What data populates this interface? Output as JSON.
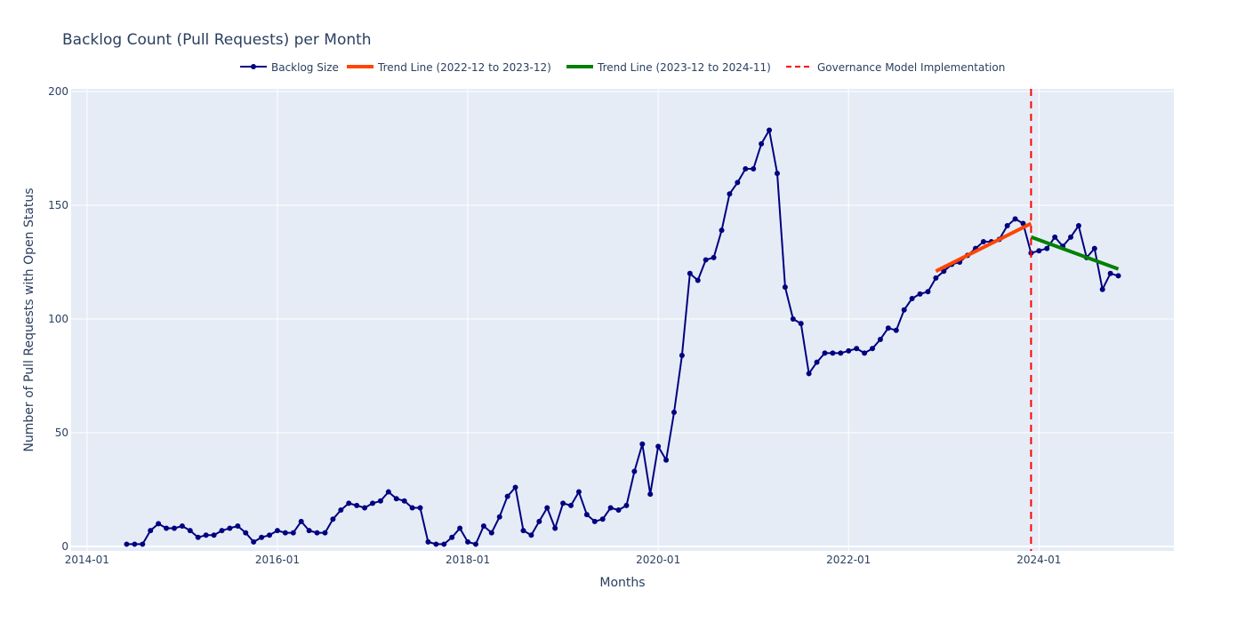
{
  "chart_data": {
    "type": "line",
    "title": "Backlog Count (Pull Requests) per Month",
    "xlabel": "Months",
    "ylabel": "Number of Pull Requests with Open Status",
    "ylim": [
      0,
      200
    ],
    "y_ticks": [
      0,
      50,
      100,
      150,
      200
    ],
    "x_ticks": [
      "2014-01",
      "2016-01",
      "2018-01",
      "2020-01",
      "2022-01",
      "2024-01"
    ],
    "grid": true,
    "legend_position": "top",
    "colors": {
      "backlog": "#000080",
      "trend1": "#ff4500",
      "trend2": "#008000",
      "governance": "#ff0000",
      "plot_bg": "#e5ecf6",
      "grid": "#ffffff"
    },
    "series": [
      {
        "name": "Backlog Size",
        "mode": "lines+markers",
        "x": [
          "2014-06",
          "2014-07",
          "2014-08",
          "2014-09",
          "2014-10",
          "2014-11",
          "2014-12",
          "2015-01",
          "2015-02",
          "2015-03",
          "2015-04",
          "2015-05",
          "2015-06",
          "2015-07",
          "2015-08",
          "2015-09",
          "2015-10",
          "2015-11",
          "2015-12",
          "2016-01",
          "2016-02",
          "2016-03",
          "2016-04",
          "2016-05",
          "2016-06",
          "2016-07",
          "2016-08",
          "2016-09",
          "2016-10",
          "2016-11",
          "2016-12",
          "2017-01",
          "2017-02",
          "2017-03",
          "2017-04",
          "2017-05",
          "2017-06",
          "2017-07",
          "2017-08",
          "2017-09",
          "2017-10",
          "2017-11",
          "2017-12",
          "2018-01",
          "2018-02",
          "2018-03",
          "2018-04",
          "2018-05",
          "2018-06",
          "2018-07",
          "2018-08",
          "2018-09",
          "2018-10",
          "2018-11",
          "2018-12",
          "2019-01",
          "2019-02",
          "2019-03",
          "2019-04",
          "2019-05",
          "2019-06",
          "2019-07",
          "2019-08",
          "2019-09",
          "2019-10",
          "2019-11",
          "2019-12",
          "2020-01",
          "2020-02",
          "2020-03",
          "2020-04",
          "2020-05",
          "2020-06",
          "2020-07",
          "2020-08",
          "2020-09",
          "2020-10",
          "2020-11",
          "2020-12",
          "2021-01",
          "2021-02",
          "2021-03",
          "2021-04",
          "2021-05",
          "2021-06",
          "2021-07",
          "2021-08",
          "2021-09",
          "2021-10",
          "2021-11",
          "2021-12",
          "2022-01",
          "2022-02",
          "2022-03",
          "2022-04",
          "2022-05",
          "2022-06",
          "2022-07",
          "2022-08",
          "2022-09",
          "2022-10",
          "2022-11",
          "2022-12",
          "2023-01",
          "2023-02",
          "2023-03",
          "2023-04",
          "2023-05",
          "2023-06",
          "2023-07",
          "2023-08",
          "2023-09",
          "2023-10",
          "2023-11",
          "2023-12",
          "2024-01",
          "2024-02",
          "2024-03",
          "2024-04",
          "2024-05",
          "2024-06",
          "2024-07",
          "2024-08",
          "2024-09",
          "2024-10",
          "2024-11"
        ],
        "y": [
          1,
          1,
          1,
          7,
          10,
          8,
          8,
          9,
          7,
          4,
          5,
          5,
          7,
          8,
          9,
          6,
          2,
          4,
          5,
          7,
          6,
          6,
          11,
          7,
          6,
          6,
          12,
          16,
          19,
          18,
          17,
          19,
          20,
          24,
          21,
          20,
          17,
          17,
          2,
          1,
          1,
          4,
          8,
          2,
          1,
          9,
          6,
          13,
          22,
          26,
          7,
          5,
          11,
          17,
          8,
          19,
          18,
          24,
          14,
          11,
          12,
          17,
          16,
          18,
          33,
          45,
          23,
          44,
          38,
          59,
          84,
          120,
          117,
          126,
          127,
          139,
          155,
          160,
          166,
          166,
          177,
          183,
          164,
          114,
          100,
          98,
          76,
          81,
          85,
          85,
          85,
          86,
          87,
          85,
          87,
          91,
          96,
          95,
          104,
          109,
          111,
          112,
          118,
          121,
          124,
          125,
          128,
          131,
          134,
          134,
          135,
          141,
          144,
          142,
          129,
          130,
          131,
          136,
          132,
          136,
          141,
          127,
          131,
          113,
          120,
          119
        ]
      },
      {
        "name": "Trend Line (2022-12 to 2023-12)",
        "mode": "lines",
        "x": [
          "2022-12",
          "2023-12"
        ],
        "y": [
          121,
          142
        ]
      },
      {
        "name": "Trend Line (2023-12 to 2024-11)",
        "mode": "lines",
        "x": [
          "2023-12",
          "2024-11"
        ],
        "y": [
          136,
          122
        ]
      },
      {
        "name": "Governance Model Implementation",
        "mode": "vline",
        "x": [
          "2023-12"
        ]
      }
    ]
  }
}
